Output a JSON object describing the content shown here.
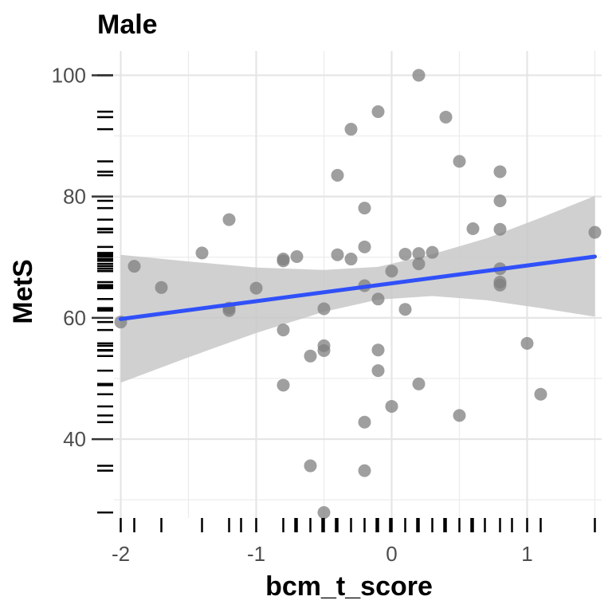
{
  "chart_data": {
    "type": "scatter",
    "title": "Male",
    "xlabel": "bcm_t_score",
    "ylabel": "MetS",
    "xlim": [
      -2.05,
      1.55
    ],
    "ylim": [
      27,
      104
    ],
    "x_ticks": [
      -2,
      -1,
      0,
      1
    ],
    "x_tick_labels": [
      "-2",
      "-1",
      "0",
      "1"
    ],
    "y_ticks": [
      40,
      60,
      80,
      100
    ],
    "y_tick_labels": [
      "40",
      "60",
      "80",
      "100"
    ],
    "grid": true,
    "rug": true,
    "point_color": "#7f7f7f",
    "line_color": "#3050f8",
    "band_color": "#c8c8c8",
    "points": [
      {
        "x": -2.0,
        "y": 59.3
      },
      {
        "x": -1.9,
        "y": 68.5
      },
      {
        "x": -1.7,
        "y": 65.0
      },
      {
        "x": -1.4,
        "y": 70.7
      },
      {
        "x": -1.2,
        "y": 76.2
      },
      {
        "x": -1.2,
        "y": 61.6
      },
      {
        "x": -1.2,
        "y": 61.2
      },
      {
        "x": -1.0,
        "y": 64.9
      },
      {
        "x": -0.8,
        "y": 69.7
      },
      {
        "x": -0.8,
        "y": 69.4
      },
      {
        "x": -0.8,
        "y": 58.0
      },
      {
        "x": -0.8,
        "y": 48.9
      },
      {
        "x": -0.7,
        "y": 70.1
      },
      {
        "x": -0.6,
        "y": 53.7
      },
      {
        "x": -0.6,
        "y": 35.6
      },
      {
        "x": -0.5,
        "y": 61.5
      },
      {
        "x": -0.5,
        "y": 55.4
      },
      {
        "x": -0.5,
        "y": 54.6
      },
      {
        "x": -0.5,
        "y": 27.9
      },
      {
        "x": -0.4,
        "y": 83.5
      },
      {
        "x": -0.4,
        "y": 70.4
      },
      {
        "x": -0.3,
        "y": 91.1
      },
      {
        "x": -0.3,
        "y": 69.7
      },
      {
        "x": -0.2,
        "y": 78.1
      },
      {
        "x": -0.2,
        "y": 71.7
      },
      {
        "x": -0.2,
        "y": 65.3
      },
      {
        "x": -0.2,
        "y": 42.8
      },
      {
        "x": -0.2,
        "y": 34.8
      },
      {
        "x": -0.1,
        "y": 94.0
      },
      {
        "x": -0.1,
        "y": 63.1
      },
      {
        "x": -0.1,
        "y": 54.7
      },
      {
        "x": -0.1,
        "y": 51.3
      },
      {
        "x": 0.0,
        "y": 67.7
      },
      {
        "x": 0.0,
        "y": 45.4
      },
      {
        "x": 0.1,
        "y": 70.5
      },
      {
        "x": 0.1,
        "y": 61.4
      },
      {
        "x": 0.2,
        "y": 100.0
      },
      {
        "x": 0.2,
        "y": 70.6
      },
      {
        "x": 0.2,
        "y": 68.9
      },
      {
        "x": 0.2,
        "y": 49.1
      },
      {
        "x": 0.3,
        "y": 70.8
      },
      {
        "x": 0.4,
        "y": 93.1
      },
      {
        "x": 0.5,
        "y": 85.8
      },
      {
        "x": 0.5,
        "y": 43.9
      },
      {
        "x": 0.6,
        "y": 74.7
      },
      {
        "x": 0.8,
        "y": 84.1
      },
      {
        "x": 0.8,
        "y": 79.3
      },
      {
        "x": 0.8,
        "y": 74.6
      },
      {
        "x": 0.8,
        "y": 68.1
      },
      {
        "x": 0.8,
        "y": 65.9
      },
      {
        "x": 0.8,
        "y": 65.4
      },
      {
        "x": 1.0,
        "y": 55.8
      },
      {
        "x": 1.1,
        "y": 47.4
      },
      {
        "x": 1.5,
        "y": 74.1
      }
    ],
    "fit_line": {
      "x": [
        -2.0,
        1.5
      ],
      "y": [
        59.8,
        70.1
      ]
    },
    "confidence_band": {
      "x": [
        -2.0,
        -1.5,
        -1.0,
        -0.5,
        -0.1,
        0.3,
        0.7,
        1.1,
        1.5
      ],
      "lower": [
        49.3,
        53.5,
        57.5,
        61.0,
        63.0,
        63.6,
        62.9,
        61.6,
        60.2
      ],
      "upper": [
        70.4,
        69.3,
        68.3,
        67.9,
        68.4,
        70.5,
        73.1,
        76.5,
        80.1
      ]
    }
  }
}
